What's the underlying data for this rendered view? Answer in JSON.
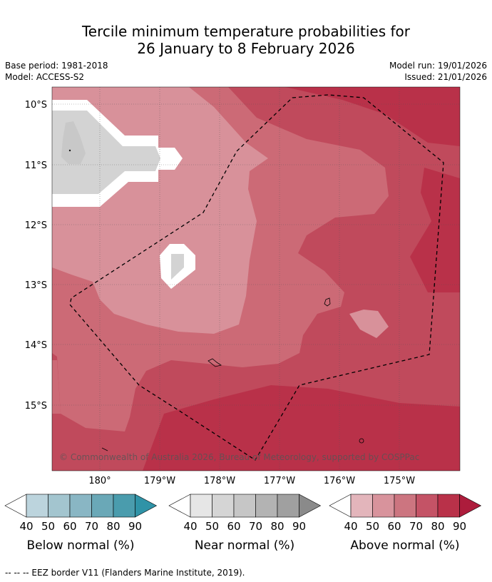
{
  "title": {
    "line1": "Tercile minimum temperature probabilities for",
    "line2": "26 January to 8 February 2026"
  },
  "meta": {
    "base_period": "Base period: 1981-2018",
    "model": "Model: ACCESS-S2",
    "model_run": "Model run: 19/01/2026",
    "issued": "Issued: 21/01/2026"
  },
  "map": {
    "latitude_labels": [
      "10°S",
      "11°S",
      "12°S",
      "13°S",
      "14°S",
      "15°S"
    ],
    "longitude_labels": [
      "180°",
      "179°W",
      "178°W",
      "177°W",
      "176°W",
      "175°W"
    ],
    "copyright": "© Commonwealth of Australia 2026, Bureau of Meteorology, supported by COSPPac",
    "colors": {
      "above_50": "#d8919a",
      "above_60": "#cc6a76",
      "above_70": "#c04a5c",
      "above_80": "#b93149",
      "above_90": "#b0203e",
      "near_90": "#d3d3d3",
      "white": "#ffffff"
    }
  },
  "legend": {
    "ticks": [
      "40",
      "50",
      "60",
      "70",
      "80",
      "90"
    ],
    "below": {
      "title": "Below normal (%)",
      "colors": [
        "#bcd4dd",
        "#a3c5cf",
        "#89b6c4",
        "#6aa8b7",
        "#4a9cad",
        "#2f93a7"
      ]
    },
    "near": {
      "title": "Near normal (%)",
      "colors": [
        "#e6e6e6",
        "#d5d5d5",
        "#c6c6c6",
        "#b3b3b3",
        "#a0a0a0",
        "#8a8a8a"
      ]
    },
    "above": {
      "title": "Above normal (%)",
      "colors": [
        "#e3b5bb",
        "#d8939c",
        "#cc7580",
        "#c45366",
        "#b93149",
        "#ad1c3c"
      ]
    }
  },
  "footnote": "--  --  -- EEZ border V11 (Flanders Marine Institute, 2019)."
}
